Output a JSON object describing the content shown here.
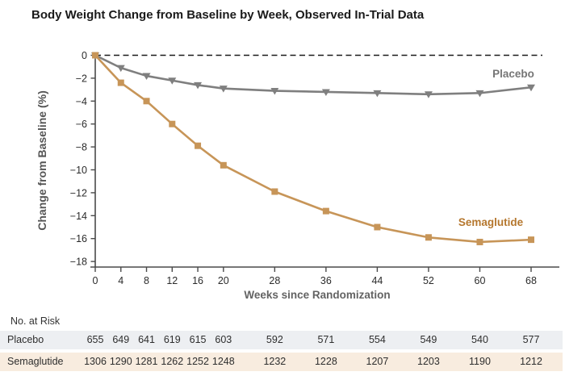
{
  "title": "Body Weight Change from Baseline by Week, Observed In-Trial Data",
  "colors": {
    "placebo_line": "#7f7f7f",
    "placebo_label": "#767676",
    "semaglutide_line": "#c79558",
    "semaglutide_label": "#b5772e",
    "axis": "#4a4a4a",
    "zero_dash_line": "#1a1a1a",
    "tick_text": "#2b2b2b",
    "axis_title_text": "#555555"
  },
  "chart_data": {
    "type": "line",
    "title": "Body Weight Change from Baseline by Week, Observed In-Trial Data",
    "xlabel": "Weeks since Randomization",
    "ylabel": "Change from Baseline (%)",
    "x": [
      0,
      4,
      8,
      12,
      16,
      20,
      28,
      36,
      44,
      52,
      60,
      68
    ],
    "xticks": [
      0,
      4,
      8,
      12,
      16,
      20,
      28,
      36,
      44,
      52,
      60,
      68
    ],
    "yticks": [
      0,
      -2,
      -4,
      -6,
      -8,
      -10,
      -12,
      -14,
      -16,
      -18
    ],
    "ylim": [
      -18,
      0
    ],
    "xlim": [
      0,
      68
    ],
    "grid": false,
    "zero_reference_line": "dashed",
    "legend": "inline-labels",
    "series": [
      {
        "name": "Placebo",
        "marker": "triangle-down",
        "color": "#7f7f7f",
        "values": [
          0,
          -1.1,
          -1.8,
          -2.2,
          -2.6,
          -2.9,
          -3.1,
          -3.2,
          -3.3,
          -3.4,
          -3.3,
          -2.8
        ]
      },
      {
        "name": "Semaglutide",
        "marker": "square",
        "color": "#c79558",
        "values": [
          0,
          -2.4,
          -4.0,
          -6.0,
          -7.9,
          -9.6,
          -11.9,
          -13.6,
          -15.0,
          -15.9,
          -16.3,
          -16.1
        ]
      }
    ]
  },
  "at_risk": {
    "heading": "No. at Risk",
    "rows": [
      {
        "label": "Placebo",
        "bg": "#edeff2",
        "values": [
          655,
          649,
          641,
          619,
          615,
          603,
          592,
          571,
          554,
          549,
          540,
          577
        ]
      },
      {
        "label": "Semaglutide",
        "bg": "#f8ecdf",
        "values": [
          1306,
          1290,
          1281,
          1262,
          1252,
          1248,
          1232,
          1228,
          1207,
          1203,
          1190,
          1212
        ]
      }
    ]
  }
}
